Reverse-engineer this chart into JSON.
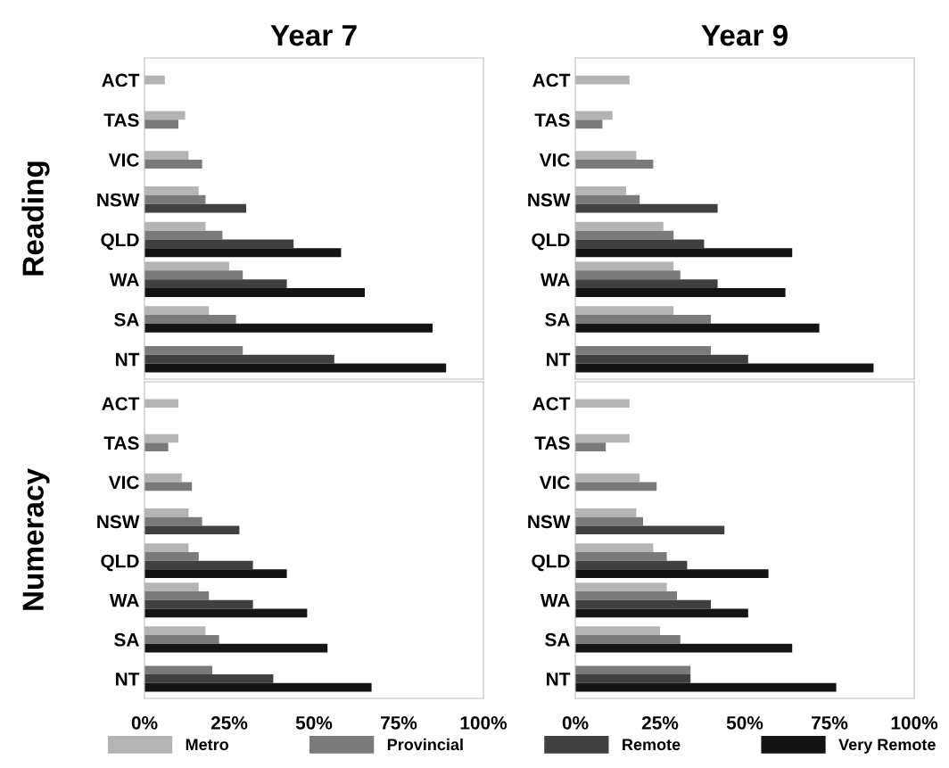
{
  "chart_data": [
    {
      "type": "bar",
      "orientation": "horizontal",
      "title": "Year 7",
      "ylabel": "Reading",
      "legend": "bottom",
      "tick_labels": "y",
      "categories": [
        "ACT",
        "TAS",
        "VIC",
        "NSW",
        "QLD",
        "WA",
        "SA",
        "NT"
      ],
      "xlim": [
        0,
        100
      ],
      "series": [
        {
          "name": "Metro",
          "color": "#b4b4b4",
          "values": [
            6,
            12,
            13,
            16,
            18,
            25,
            19,
            null
          ]
        },
        {
          "name": "Provincial",
          "color": "#7a7a7a",
          "values": [
            null,
            10,
            17,
            18,
            23,
            29,
            27,
            29
          ]
        },
        {
          "name": "Remote",
          "color": "#404040",
          "values": [
            null,
            null,
            null,
            30,
            44,
            42,
            null,
            56
          ]
        },
        {
          "name": "Very Remote",
          "color": "#141414",
          "values": [
            null,
            null,
            null,
            null,
            58,
            65,
            85,
            89
          ]
        }
      ]
    },
    {
      "type": "bar",
      "orientation": "horizontal",
      "title": "Year 9",
      "tick_labels": "y",
      "categories": [
        "ACT",
        "TAS",
        "VIC",
        "NSW",
        "QLD",
        "WA",
        "SA",
        "NT"
      ],
      "xlim": [
        0,
        100
      ],
      "series": [
        {
          "color": "#b4b4b4",
          "values": [
            16,
            11,
            18,
            15,
            26,
            29,
            29,
            null
          ]
        },
        {
          "color": "#7a7a7a",
          "values": [
            null,
            8,
            23,
            19,
            29,
            31,
            40,
            40
          ]
        },
        {
          "color": "#404040",
          "values": [
            null,
            null,
            null,
            42,
            38,
            42,
            null,
            51
          ]
        },
        {
          "color": "#141414",
          "values": [
            null,
            null,
            null,
            null,
            64,
            62,
            72,
            88
          ]
        }
      ]
    },
    {
      "type": "bar",
      "orientation": "horizontal",
      "ylabel": "Numeracy",
      "categories": [
        "ACT",
        "TAS",
        "VIC",
        "NSW",
        "QLD",
        "WA",
        "SA",
        "NT"
      ],
      "xlim": [
        0,
        100
      ],
      "xticks": [
        {
          "value": 0,
          "label": "0%"
        },
        {
          "value": 25,
          "label": "25%"
        },
        {
          "value": 50,
          "label": "50%"
        },
        {
          "value": 75,
          "label": "75%"
        },
        {
          "value": 100,
          "label": "100%"
        }
      ],
      "series": [
        {
          "color": "#b4b4b4",
          "values": [
            10,
            10,
            11,
            13,
            13,
            16,
            18,
            null
          ]
        },
        {
          "color": "#7a7a7a",
          "values": [
            null,
            7,
            14,
            17,
            16,
            19,
            22,
            20
          ]
        },
        {
          "color": "#404040",
          "values": [
            null,
            null,
            null,
            28,
            32,
            32,
            null,
            38
          ]
        },
        {
          "color": "#141414",
          "values": [
            null,
            null,
            null,
            null,
            42,
            48,
            54,
            67
          ]
        }
      ]
    },
    {
      "type": "bar",
      "orientation": "horizontal",
      "categories": [
        "ACT",
        "TAS",
        "VIC",
        "NSW",
        "QLD",
        "WA",
        "SA",
        "NT"
      ],
      "xlim": [
        0,
        100
      ],
      "xticks": [
        {
          "value": 0,
          "label": "0%"
        },
        {
          "value": 25,
          "label": "25%"
        },
        {
          "value": 50,
          "label": "50%"
        },
        {
          "value": 75,
          "label": "75%"
        },
        {
          "value": 100,
          "label": "100%"
        }
      ],
      "series": [
        {
          "color": "#b4b4b4",
          "values": [
            16,
            16,
            19,
            18,
            23,
            27,
            25,
            null
          ]
        },
        {
          "color": "#7a7a7a",
          "values": [
            null,
            9,
            24,
            20,
            27,
            30,
            31,
            34
          ]
        },
        {
          "color": "#404040",
          "values": [
            null,
            null,
            null,
            44,
            33,
            40,
            null,
            34
          ]
        },
        {
          "color": "#141414",
          "values": [
            null,
            null,
            null,
            null,
            57,
            51,
            64,
            77
          ]
        }
      ]
    }
  ]
}
